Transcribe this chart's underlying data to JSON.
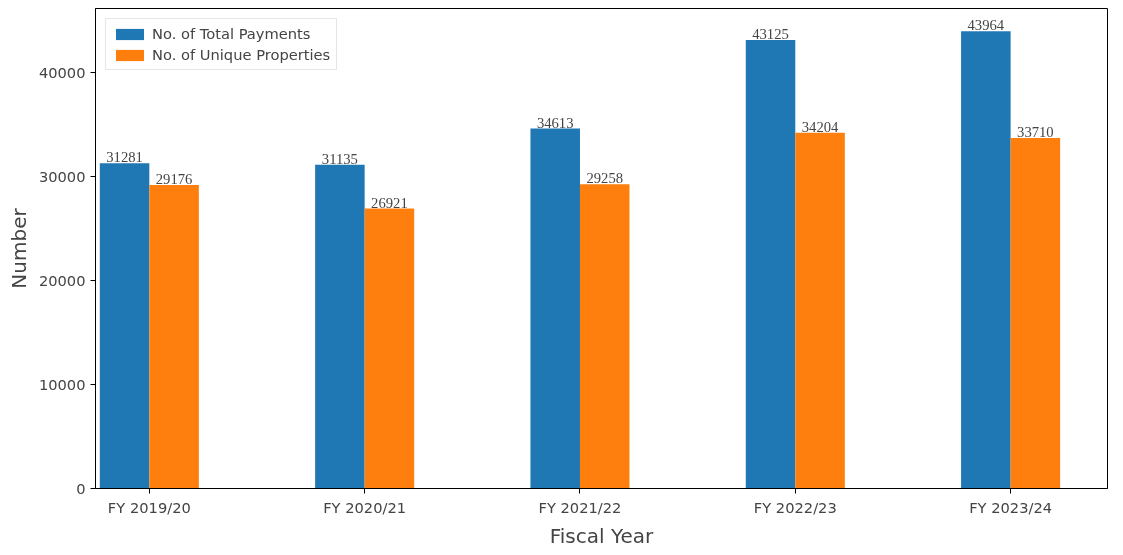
{
  "chart_data": {
    "type": "bar",
    "xlabel": "Fiscal Year",
    "ylabel": "Number",
    "categories": [
      "FY 2019/20",
      "FY 2020/21",
      "FY 2021/22",
      "FY 2022/23",
      "FY 2023/24"
    ],
    "series": [
      {
        "name": "No. of Total Payments",
        "color": "#1f77b4",
        "values": [
          31281,
          31135,
          34613,
          43125,
          43964
        ]
      },
      {
        "name": "No. of Unique Properties",
        "color": "#ff7f0e",
        "values": [
          29176,
          26921,
          29258,
          34204,
          33710
        ]
      }
    ],
    "ylim": [
      0,
      46160
    ],
    "yticks": [
      0,
      10000,
      20000,
      30000,
      40000
    ],
    "grid": false,
    "legend": "top left",
    "data_labels": true
  }
}
